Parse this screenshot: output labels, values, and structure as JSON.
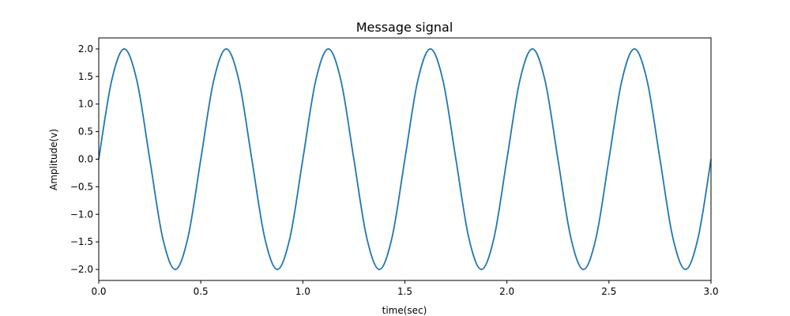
{
  "chart_data": {
    "type": "line",
    "title": "Message signal",
    "xlabel": "time(sec)",
    "ylabel": "Amplitude(v)",
    "xlim": [
      0.0,
      3.0
    ],
    "ylim": [
      -2.2,
      2.2
    ],
    "x_ticks": [
      0.0,
      0.5,
      1.0,
      1.5,
      2.0,
      2.5,
      3.0
    ],
    "x_tick_labels": [
      "0.0",
      "0.5",
      "1.0",
      "1.5",
      "2.0",
      "2.5",
      "3.0"
    ],
    "y_ticks": [
      2.0,
      1.5,
      1.0,
      0.5,
      0.0,
      -0.5,
      -1.0,
      -1.5,
      -2.0
    ],
    "y_tick_labels": [
      "2.0",
      "1.5",
      "1.0",
      "0.5",
      "0.0",
      "−0.5",
      "−1.0",
      "−1.5",
      "−2.0"
    ],
    "grid": false,
    "series": [
      {
        "color": "#1f77b4",
        "x": [
          0.0,
          0.0625,
          0.125,
          0.1875,
          0.25,
          0.3125,
          0.375,
          0.4375,
          0.5,
          0.5625,
          0.625,
          0.6875,
          0.75,
          0.8125,
          0.875,
          0.9375,
          1.0,
          1.0625,
          1.125,
          1.1875,
          1.25,
          1.3125,
          1.375,
          1.4375,
          1.5,
          1.5625,
          1.625,
          1.6875,
          1.75,
          1.8125,
          1.875,
          1.9375,
          2.0,
          2.0625,
          2.125,
          2.1875,
          2.25,
          2.3125,
          2.375,
          2.4375,
          2.5,
          2.5625,
          2.625,
          2.6875,
          2.75,
          2.8125,
          2.875,
          2.9375,
          3.0
        ],
        "y": [
          0.0,
          1.414,
          2.0,
          1.414,
          0.0,
          -1.414,
          -2.0,
          -1.414,
          0.0,
          1.414,
          2.0,
          1.414,
          0.0,
          -1.414,
          -2.0,
          -1.414,
          0.0,
          1.414,
          2.0,
          1.414,
          0.0,
          -1.414,
          -2.0,
          -1.414,
          0.0,
          1.414,
          2.0,
          1.414,
          0.0,
          -1.414,
          -2.0,
          -1.414,
          0.0,
          1.414,
          2.0,
          1.414,
          0.0,
          -1.414,
          -2.0,
          -1.414,
          0.0,
          1.414,
          2.0,
          1.414,
          0.0,
          -1.414,
          -2.0,
          -1.414,
          0.0
        ]
      }
    ]
  }
}
